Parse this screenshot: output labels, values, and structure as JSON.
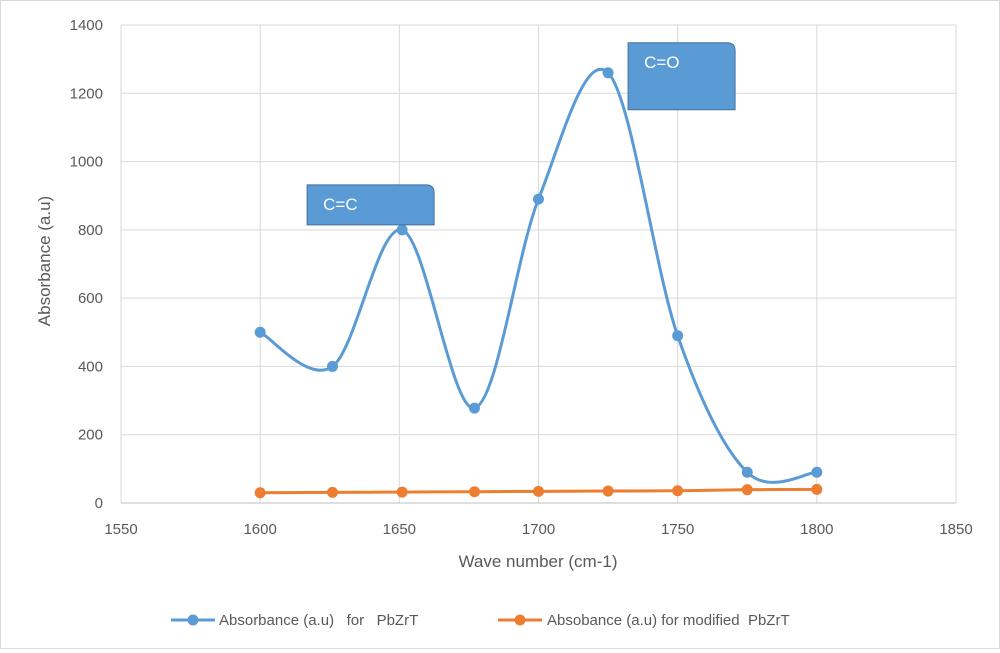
{
  "chart_data": {
    "type": "scatter",
    "title": "",
    "xlabel": "Wave number (cm-1)",
    "ylabel": "Absorbance (a.u)",
    "xlim": [
      1550,
      1850
    ],
    "ylim": [
      0,
      1400
    ],
    "xticks": [
      1550,
      1600,
      1650,
      1700,
      1750,
      1800,
      1850
    ],
    "yticks": [
      0,
      200,
      400,
      600,
      800,
      1000,
      1200,
      1400
    ],
    "grid": true,
    "smooth_lines": true,
    "legend_position": "bottom",
    "series": [
      {
        "name": "Absorbance (a.u)   for   PbZrT",
        "color": "#5B9BD5",
        "x": [
          1600,
          1626,
          1651,
          1677,
          1700,
          1725,
          1750,
          1775,
          1800
        ],
        "y": [
          500,
          400,
          800,
          278,
          890,
          1260,
          490,
          90,
          90
        ]
      },
      {
        "name": "Absobance (a.u) for modified  PbZrT",
        "color": "#ED7D31",
        "x": [
          1600,
          1626,
          1651,
          1677,
          1700,
          1725,
          1750,
          1775,
          1800
        ],
        "y": [
          30,
          31,
          32,
          33,
          34,
          35,
          36,
          39,
          40
        ]
      }
    ],
    "annotations": [
      {
        "text": "C=C",
        "x": 1651,
        "y": 800
      },
      {
        "text": "C=O",
        "x": 1725,
        "y": 1260
      }
    ]
  }
}
